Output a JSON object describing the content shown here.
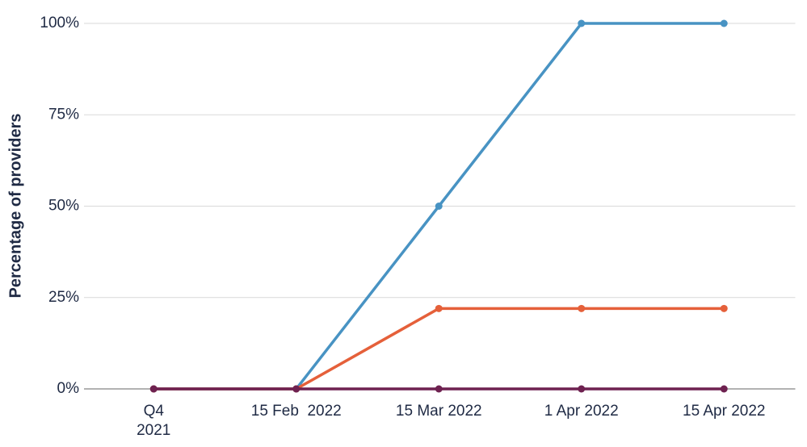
{
  "chart_data": {
    "type": "line",
    "y_label": "Percentage of providers",
    "categories": [
      "Q4\n2021",
      "15 Feb  2022",
      "15 Mar 2022",
      "1 Apr 2022",
      "15 Apr 2022"
    ],
    "series": [
      {
        "color": "#4893c3",
        "values": [
          0,
          0,
          50,
          100,
          100
        ]
      },
      {
        "color": "#e5603a",
        "values": [
          0,
          0,
          22,
          22,
          22
        ]
      },
      {
        "color": "#6e2150",
        "values": [
          0,
          0,
          0,
          0,
          0
        ]
      }
    ],
    "ylim": [
      0,
      100
    ],
    "yticks": [
      {
        "value": 0,
        "label": "0%"
      },
      {
        "value": 25,
        "label": "25%"
      },
      {
        "value": 50,
        "label": "50%"
      },
      {
        "value": 75,
        "label": "75%"
      },
      {
        "value": 100,
        "label": "100%"
      }
    ],
    "grid": true
  }
}
